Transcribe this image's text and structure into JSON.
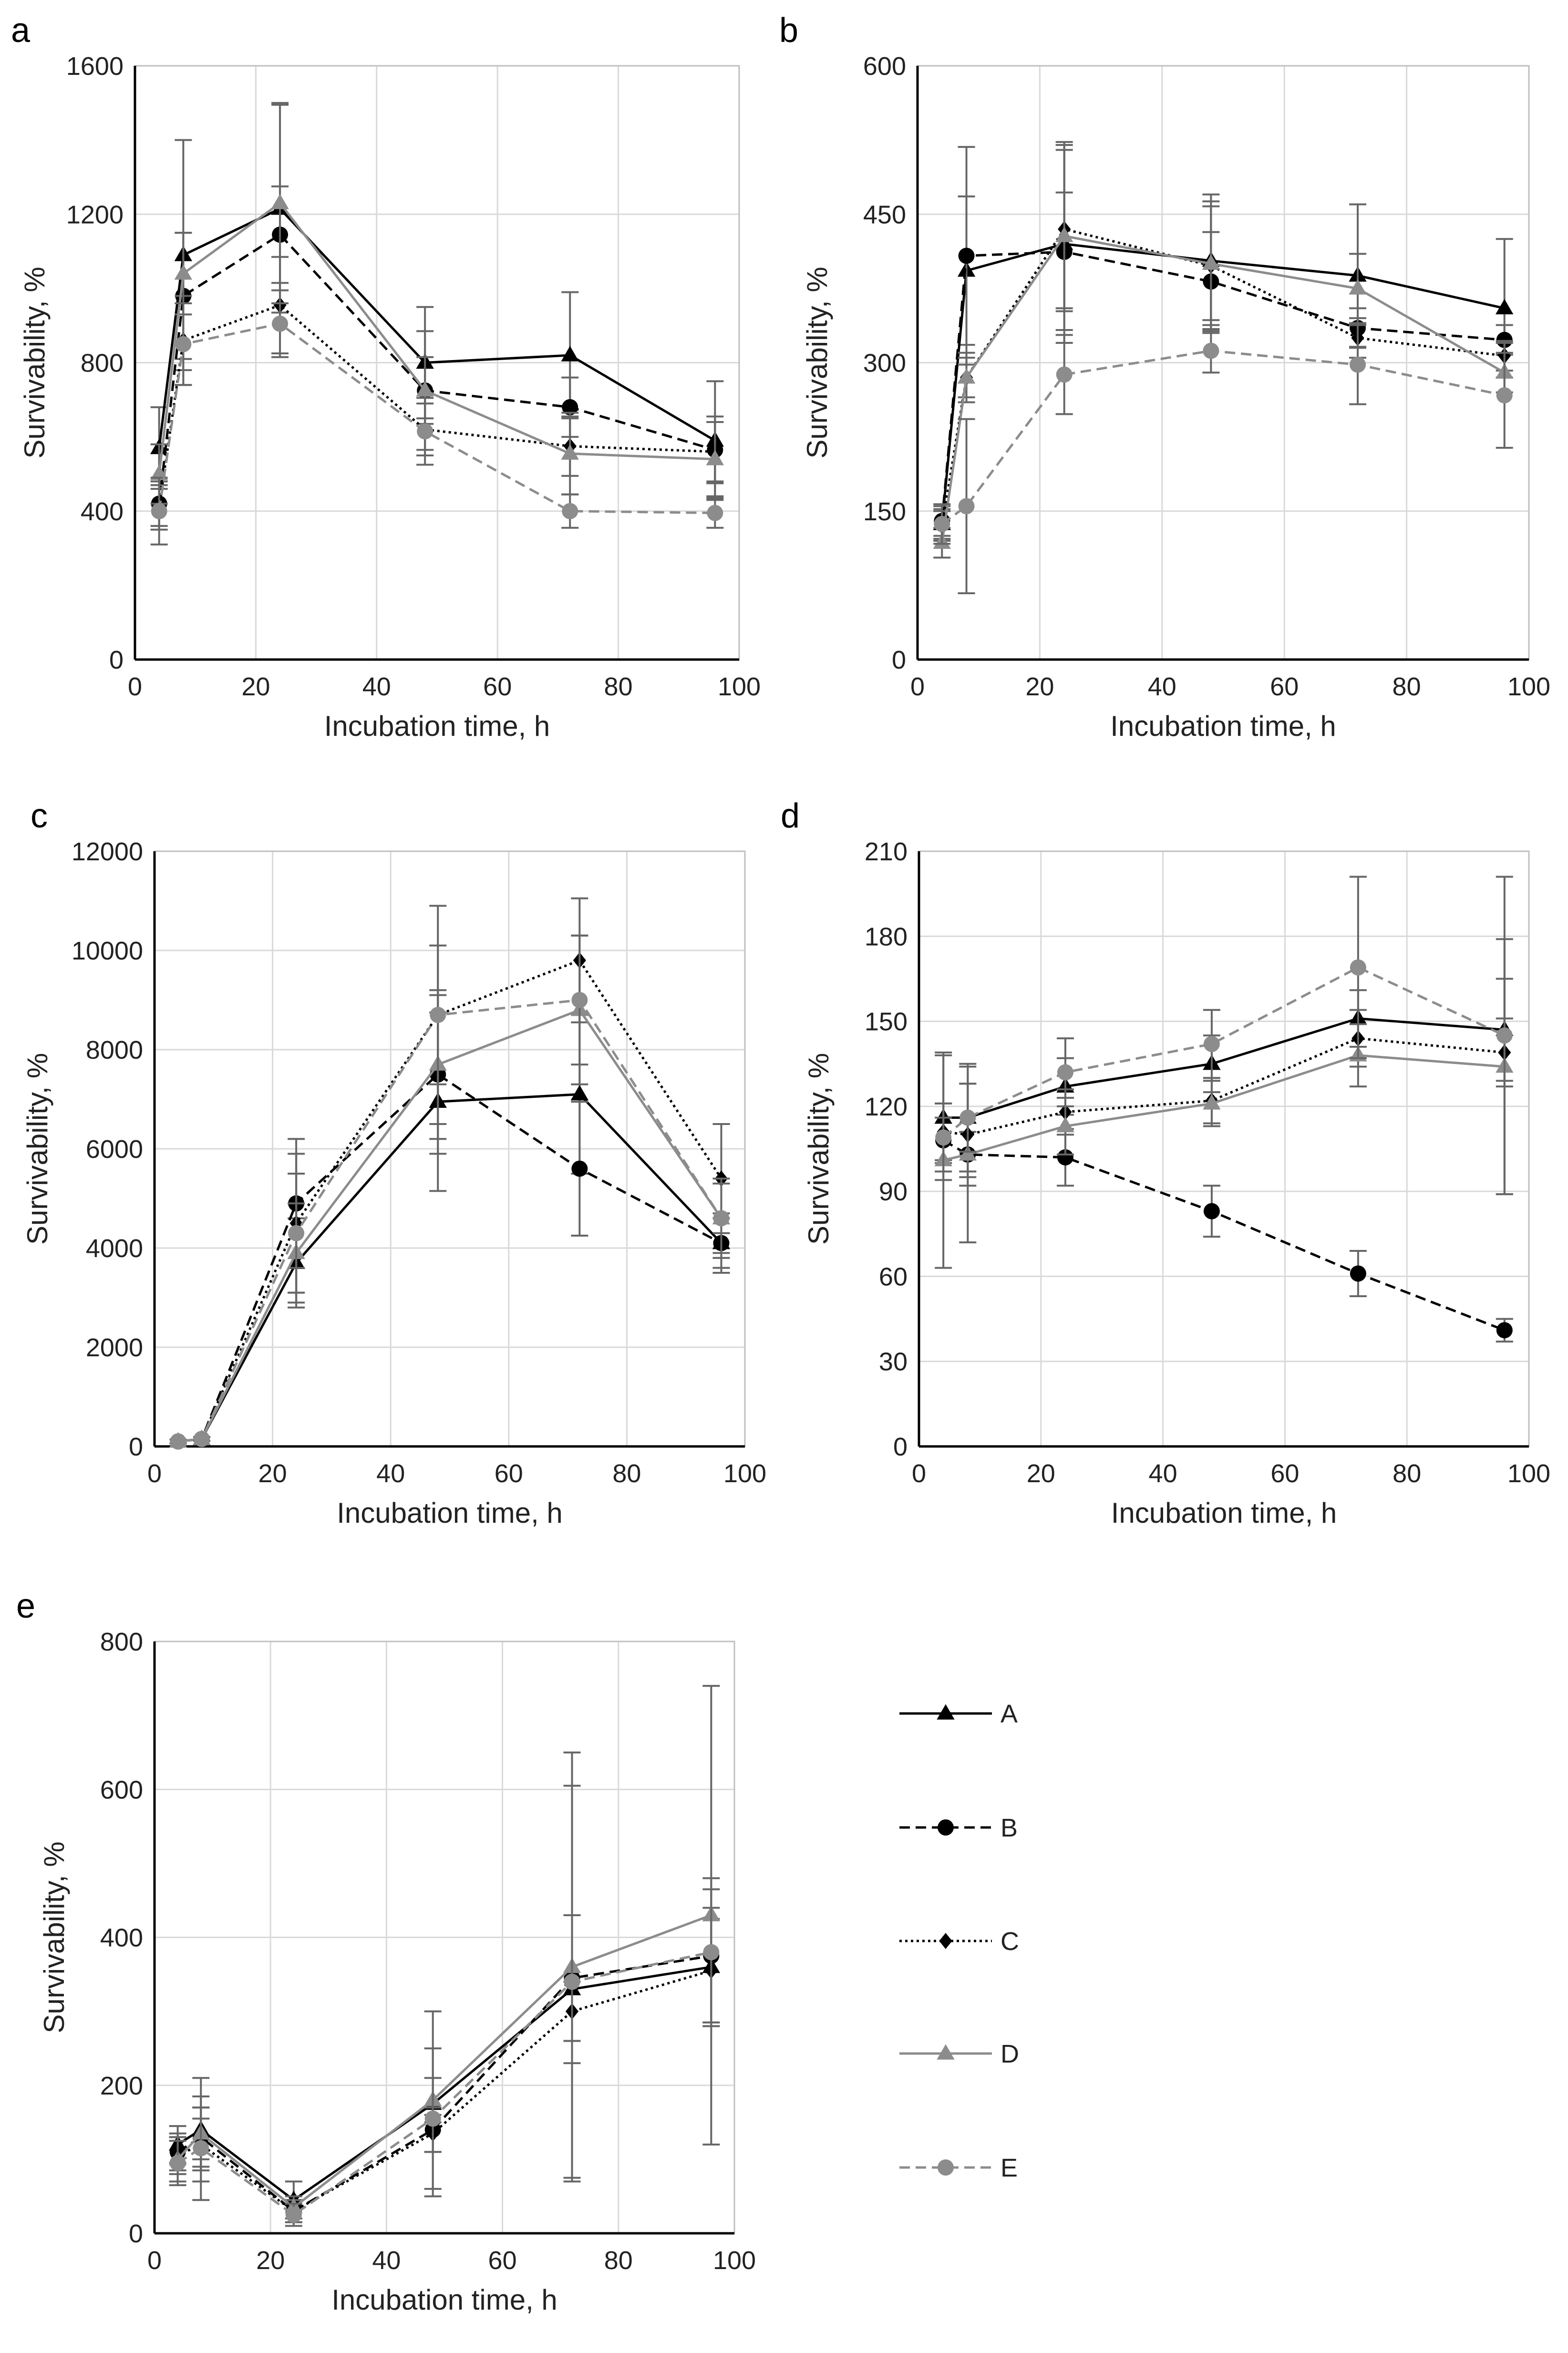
{
  "chart_data": [
    {
      "type": "line",
      "panel": "a",
      "xlabel": "Incubation time, h",
      "ylabel": "Survivability, %",
      "xlim": [
        0,
        100
      ],
      "ylim": [
        0,
        1600
      ],
      "xticks": [
        0,
        20,
        40,
        60,
        80,
        100
      ],
      "yticks": [
        0,
        400,
        800,
        1200,
        1600
      ],
      "grid": true,
      "x": [
        4,
        8,
        24,
        48,
        72,
        96
      ],
      "series": [
        {
          "name": "A",
          "values": [
            570,
            1090,
            1215,
            800,
            820,
            590
          ],
          "err": [
            110,
            310,
            280,
            150,
            170,
            160
          ]
        },
        {
          "name": "B",
          "values": [
            420,
            980,
            1145,
            725,
            680,
            565
          ],
          "err": [
            60,
            170,
            130,
            90,
            80,
            90
          ]
        },
        {
          "name": "C",
          "values": [
            410,
            860,
            955,
            620,
            575,
            560
          ],
          "err": [
            60,
            120,
            130,
            70,
            80,
            80
          ]
        },
        {
          "name": "D",
          "values": [
            500,
            1040,
            1230,
            725,
            555,
            540
          ],
          "err": [
            80,
            110,
            270,
            160,
            110,
            100
          ]
        },
        {
          "name": "E",
          "values": [
            400,
            850,
            905,
            615,
            400,
            395
          ],
          "err": [
            90,
            110,
            90,
            90,
            45,
            40
          ]
        }
      ]
    },
    {
      "type": "line",
      "panel": "b",
      "xlabel": "Incubation time, h",
      "ylabel": "Survivability, %",
      "xlim": [
        0,
        100
      ],
      "ylim": [
        0,
        600
      ],
      "xticks": [
        0,
        20,
        40,
        60,
        80,
        100
      ],
      "yticks": [
        0,
        150,
        300,
        450,
        600
      ],
      "grid": true,
      "x": [
        4,
        8,
        24,
        48,
        72,
        96
      ],
      "series": [
        {
          "name": "A",
          "values": [
            137,
            393,
            420,
            403,
            388,
            355
          ],
          "err": [
            15,
            75,
            100,
            60,
            72,
            70
          ]
        },
        {
          "name": "B",
          "values": [
            140,
            408,
            412,
            382,
            335,
            323
          ],
          "err": [
            15,
            110,
            60,
            50,
            20,
            15
          ]
        },
        {
          "name": "C",
          "values": [
            135,
            285,
            435,
            398,
            325,
            307
          ],
          "err": [
            15,
            25,
            80,
            60,
            20,
            15
          ]
        },
        {
          "name": "D",
          "values": [
            118,
            285,
            428,
            400,
            375,
            290
          ],
          "err": [
            15,
            20,
            95,
            70,
            35,
            20
          ]
        },
        {
          "name": "E",
          "values": [
            137,
            155,
            288,
            312,
            298,
            267
          ],
          "err": [
            20,
            88,
            40,
            22,
            40,
            53
          ]
        }
      ]
    },
    {
      "type": "line",
      "panel": "c",
      "xlabel": "Incubation time, h",
      "ylabel": "Survivability, %",
      "xlim": [
        0,
        100
      ],
      "ylim": [
        0,
        12000
      ],
      "xticks": [
        0,
        20,
        40,
        60,
        80,
        100
      ],
      "yticks": [
        0,
        2000,
        4000,
        6000,
        8000,
        10000,
        12000
      ],
      "grid": true,
      "x": [
        4,
        8,
        24,
        48,
        72,
        96
      ],
      "series": [
        {
          "name": "A",
          "values": [
            100,
            150,
            3700,
            6950,
            7100,
            4100
          ],
          "err": [
            40,
            40,
            900,
            1800,
            1600,
            500
          ]
        },
        {
          "name": "B",
          "values": [
            100,
            150,
            4900,
            7500,
            5600,
            4100
          ],
          "err": [
            40,
            40,
            1300,
            1600,
            1350,
            600
          ]
        },
        {
          "name": "C",
          "values": [
            100,
            150,
            4500,
            8700,
            9800,
            5400
          ],
          "err": [
            40,
            40,
            1400,
            2200,
            1250,
            1100
          ]
        },
        {
          "name": "D",
          "values": [
            100,
            150,
            3900,
            7700,
            8800,
            4600
          ],
          "err": [
            40,
            40,
            1000,
            1500,
            1500,
            800
          ]
        },
        {
          "name": "E",
          "values": [
            100,
            150,
            4300,
            8700,
            9000,
            4600
          ],
          "err": [
            40,
            40,
            1200,
            1400,
            1300,
            700
          ]
        }
      ]
    },
    {
      "type": "line",
      "panel": "d",
      "xlabel": "Incubation time, h",
      "ylabel": "Survivability, %",
      "xlim": [
        0,
        100
      ],
      "ylim": [
        0,
        210
      ],
      "xticks": [
        0,
        20,
        40,
        60,
        80,
        100
      ],
      "yticks": [
        0,
        30,
        60,
        90,
        120,
        150,
        180,
        210
      ],
      "grid": true,
      "x": [
        4,
        8,
        24,
        48,
        72,
        96
      ],
      "series": [
        {
          "name": "A",
          "values": [
            116,
            116,
            127,
            135,
            151,
            147
          ],
          "err": [
            22,
            19,
            10,
            10,
            10,
            18
          ]
        },
        {
          "name": "B",
          "values": [
            108,
            103,
            102,
            83,
            61,
            41
          ],
          "err": [
            8,
            8,
            10,
            9,
            8,
            4
          ]
        },
        {
          "name": "C",
          "values": [
            111,
            110,
            118,
            122,
            144,
            139
          ],
          "err": [
            10,
            18,
            8,
            8,
            10,
            12
          ]
        },
        {
          "name": "D",
          "values": [
            101,
            103,
            113,
            121,
            138,
            134
          ],
          "err": [
            38,
            31,
            10,
            8,
            11,
            45
          ]
        },
        {
          "name": "E",
          "values": [
            109,
            116,
            132,
            142,
            169,
            145
          ],
          "err": [
            12,
            12,
            12,
            12,
            32,
            56
          ]
        }
      ]
    },
    {
      "type": "line",
      "panel": "e",
      "xlabel": "Incubation time, h",
      "ylabel": "Survivability, %",
      "xlim": [
        0,
        100
      ],
      "ylim": [
        0,
        800
      ],
      "xticks": [
        0,
        20,
        40,
        60,
        80,
        100
      ],
      "yticks": [
        0,
        200,
        400,
        600,
        800
      ],
      "grid": true,
      "x": [
        4,
        8,
        24,
        48,
        72,
        96
      ],
      "series": [
        {
          "name": "A",
          "values": [
            120,
            140,
            45,
            175,
            330,
            360
          ],
          "err": [
            25,
            70,
            25,
            125,
            100,
            80
          ]
        },
        {
          "name": "B",
          "values": [
            110,
            130,
            30,
            140,
            345,
            375
          ],
          "err": [
            25,
            40,
            15,
            30,
            85,
            90
          ]
        },
        {
          "name": "C",
          "values": [
            105,
            120,
            30,
            135,
            300,
            355
          ],
          "err": [
            25,
            35,
            15,
            25,
            40,
            70
          ]
        },
        {
          "name": "D",
          "values": [
            100,
            135,
            35,
            180,
            360,
            430
          ],
          "err": [
            30,
            35,
            15,
            30,
            290,
            310
          ]
        },
        {
          "name": "E",
          "values": [
            95,
            115,
            25,
            155,
            340,
            380
          ],
          "err": [
            30,
            70,
            15,
            95,
            265,
            100
          ]
        }
      ]
    }
  ],
  "legend": {
    "placement": "right of panel e",
    "entries": [
      "A",
      "B",
      "C",
      "D",
      "E"
    ]
  },
  "styles": {
    "A": {
      "color": "#000000",
      "dash": "solid",
      "marker": "triangle"
    },
    "B": {
      "color": "#000000",
      "dash": "dashed",
      "marker": "circle"
    },
    "C": {
      "color": "#000000",
      "dash": "dotted",
      "marker": "diamond"
    },
    "D": {
      "color": "#8c8c8c",
      "dash": "solid",
      "marker": "triangle"
    },
    "E": {
      "color": "#8c8c8c",
      "dash": "dashed",
      "marker": "circle"
    },
    "errorbar_color": "#666666",
    "grid_color": "#d9d9d9"
  }
}
